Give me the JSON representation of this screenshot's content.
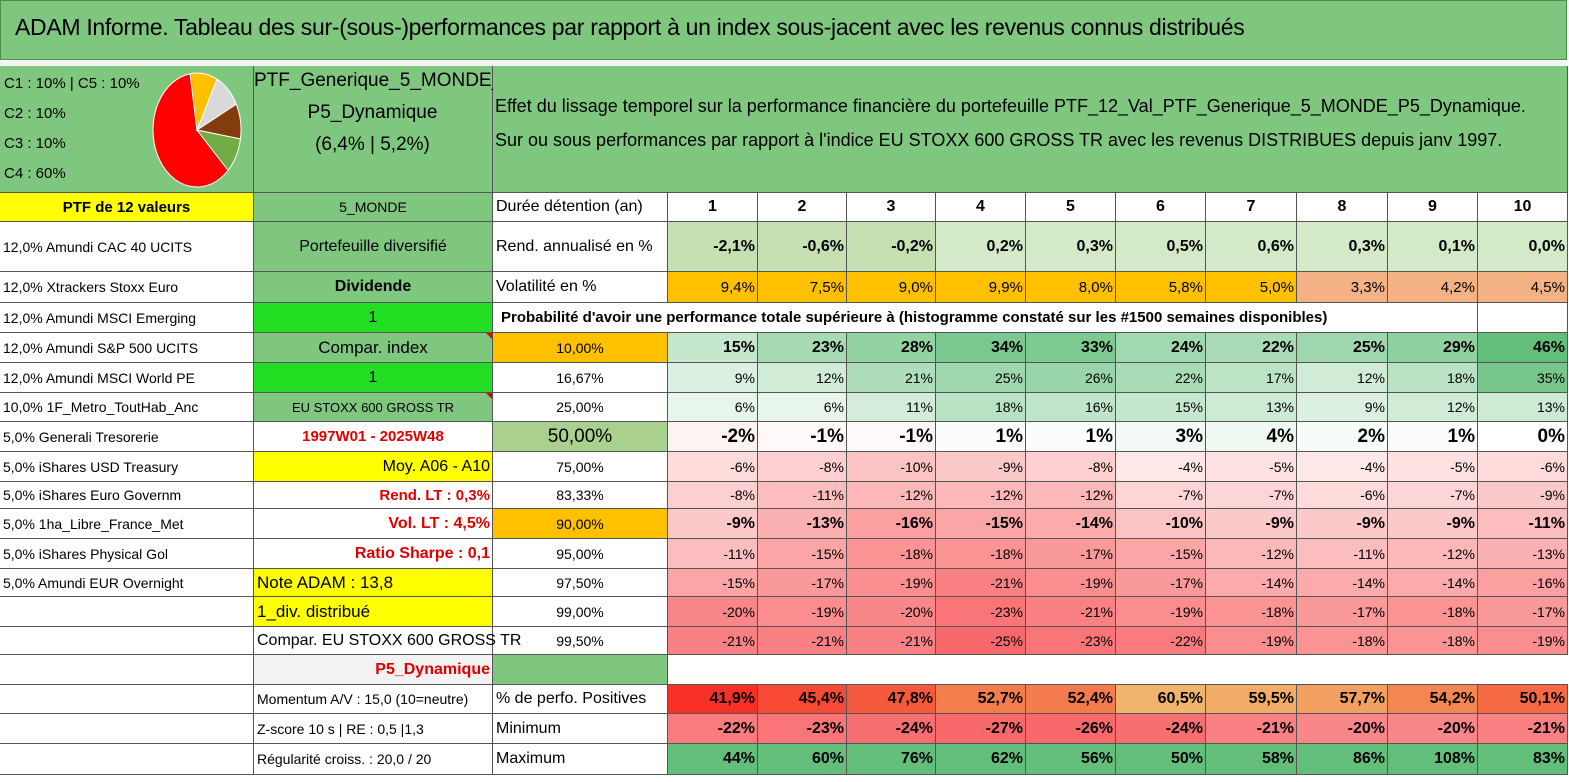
{
  "header": {
    "title": "ADAM Informe. Tableau des sur-(sous-)performances par rapport à un index sous-jacent avec les revenus connus distribués"
  },
  "pie": {
    "legend": [
      "C1 : 10% | C5 : 10%",
      "C2 : 10%",
      "C3 : 10%",
      "C4 : 60%"
    ],
    "slices": [
      {
        "name": "C4",
        "value": 60,
        "color": "#ff0000"
      },
      {
        "name": "C3",
        "value": 10,
        "color": "#70ad47"
      },
      {
        "name": "C2",
        "value": 10,
        "color": "#843c0c"
      },
      {
        "name": "C1",
        "value": 10,
        "color": "#d9d9d9"
      },
      {
        "name": "C5",
        "value": 10,
        "color": "#ffc000"
      }
    ]
  },
  "portfolio": {
    "name_line1": "PTF_Generique_5_MONDE_",
    "name_line2": "P5_Dynamique",
    "name_line3": "(6,4% | 5,2%)"
  },
  "description": {
    "line1": "Effet du lissage temporel sur la performance financière du portefeuille PTF_12_Val_PTF_Generique_5_MONDE_P5_Dynamique.",
    "line2": "Sur ou sous performances par rapport à l'indice EU STOXX 600 GROSS TR avec les revenus DISTRIBUES depuis janv 1997."
  },
  "col1_header": "PTF de 12 valeurs",
  "col2_header": "5_MONDE",
  "duration_label": "Durée détention (an)",
  "durations": [
    "1",
    "2",
    "3",
    "4",
    "5",
    "6",
    "7",
    "8",
    "9",
    "10"
  ],
  "holdings": [
    "12,0% Amundi CAC 40 UCITS",
    "12,0% Xtrackers Stoxx Euro",
    "12,0% Amundi MSCI Emerging",
    "12,0% Amundi S&P 500 UCITS",
    "12,0% Amundi MSCI World PE",
    "10,0% 1F_Metro_ToutHab_Anc",
    "5,0% Generali Tresorerie",
    "5,0% iShares USD Treasury",
    "5,0% iShares Euro Governm",
    "5,0% 1ha_Libre_France_Met",
    "5,0% iShares Physical Gol",
    "5,0% Amundi EUR Overnight",
    "",
    "",
    "",
    "",
    "",
    ""
  ],
  "col2": [
    "Portefeuille diversifié",
    "Dividende",
    "1",
    "Compar. index",
    "1",
    "EU STOXX 600 GROSS TR",
    "1997W01 - 2025W48",
    "Moy. A06 - A10",
    "Rend. LT : 0,3%",
    "Vol. LT : 4,5%",
    "Ratio Sharpe : 0,1",
    "Note ADAM : 13,8",
    "1_div. distribué",
    "Compar. EU STOXX 600 GROSS TR",
    "P5_Dynamique",
    "Momentum A/V : 15,0 (10=neutre)",
    "Z-score 10 s | RE : 0,5 |1,3",
    "Régularité croiss. : 20,0 / 20"
  ],
  "rend": {
    "label": "Rend. annualisé en %",
    "values": [
      "-2,1%",
      "-0,6%",
      "-0,2%",
      "0,2%",
      "0,3%",
      "0,5%",
      "0,6%",
      "0,3%",
      "0,1%",
      "0,0%"
    ]
  },
  "vol": {
    "label": "Volatilité en %",
    "values": [
      "9,4%",
      "7,5%",
      "9,0%",
      "9,9%",
      "8,0%",
      "5,8%",
      "5,0%",
      "3,3%",
      "4,2%",
      "4,5%"
    ]
  },
  "prob_label": "Probabilité d'avoir une performance totale supérieure à (histogramme constaté sur les #1500 semaines disponibles)",
  "prob_rows": [
    {
      "pct": "10,00%",
      "values": [
        "15%",
        "23%",
        "28%",
        "34%",
        "33%",
        "24%",
        "22%",
        "25%",
        "29%",
        "46%"
      ]
    },
    {
      "pct": "16,67%",
      "values": [
        "9%",
        "12%",
        "21%",
        "25%",
        "26%",
        "22%",
        "17%",
        "12%",
        "18%",
        "35%"
      ]
    },
    {
      "pct": "25,00%",
      "values": [
        "6%",
        "6%",
        "11%",
        "18%",
        "16%",
        "15%",
        "13%",
        "9%",
        "12%",
        "13%"
      ]
    },
    {
      "pct": "50,00%",
      "values": [
        "-2%",
        "-1%",
        "-1%",
        "1%",
        "1%",
        "3%",
        "4%",
        "2%",
        "1%",
        "0%"
      ]
    },
    {
      "pct": "75,00%",
      "values": [
        "-6%",
        "-8%",
        "-10%",
        "-9%",
        "-8%",
        "-4%",
        "-5%",
        "-4%",
        "-5%",
        "-6%"
      ]
    },
    {
      "pct": "83,33%",
      "values": [
        "-8%",
        "-11%",
        "-12%",
        "-12%",
        "-12%",
        "-7%",
        "-7%",
        "-6%",
        "-7%",
        "-9%"
      ]
    },
    {
      "pct": "90,00%",
      "values": [
        "-9%",
        "-13%",
        "-16%",
        "-15%",
        "-14%",
        "-10%",
        "-9%",
        "-9%",
        "-9%",
        "-11%"
      ]
    },
    {
      "pct": "95,00%",
      "values": [
        "-11%",
        "-15%",
        "-18%",
        "-18%",
        "-17%",
        "-15%",
        "-12%",
        "-11%",
        "-12%",
        "-13%"
      ]
    },
    {
      "pct": "97,50%",
      "values": [
        "-15%",
        "-17%",
        "-19%",
        "-21%",
        "-19%",
        "-17%",
        "-14%",
        "-14%",
        "-14%",
        "-16%"
      ]
    },
    {
      "pct": "99,00%",
      "values": [
        "-20%",
        "-19%",
        "-20%",
        "-23%",
        "-21%",
        "-19%",
        "-18%",
        "-17%",
        "-18%",
        "-17%"
      ]
    },
    {
      "pct": "99,50%",
      "values": [
        "-21%",
        "-21%",
        "-21%",
        "-25%",
        "-23%",
        "-22%",
        "-19%",
        "-18%",
        "-18%",
        "-19%"
      ]
    }
  ],
  "pos": {
    "label": "% de perfo. Positives",
    "values": [
      "41,9%",
      "45,4%",
      "47,8%",
      "52,7%",
      "52,4%",
      "60,5%",
      "59,5%",
      "57,7%",
      "54,2%",
      "50,1%"
    ]
  },
  "min": {
    "label": "Minimum",
    "values": [
      "-22%",
      "-23%",
      "-24%",
      "-27%",
      "-26%",
      "-24%",
      "-21%",
      "-20%",
      "-20%",
      "-21%"
    ]
  },
  "max": {
    "label": "Maximum",
    "values": [
      "44%",
      "60%",
      "76%",
      "62%",
      "56%",
      "50%",
      "58%",
      "86%",
      "108%",
      "83%"
    ]
  }
}
